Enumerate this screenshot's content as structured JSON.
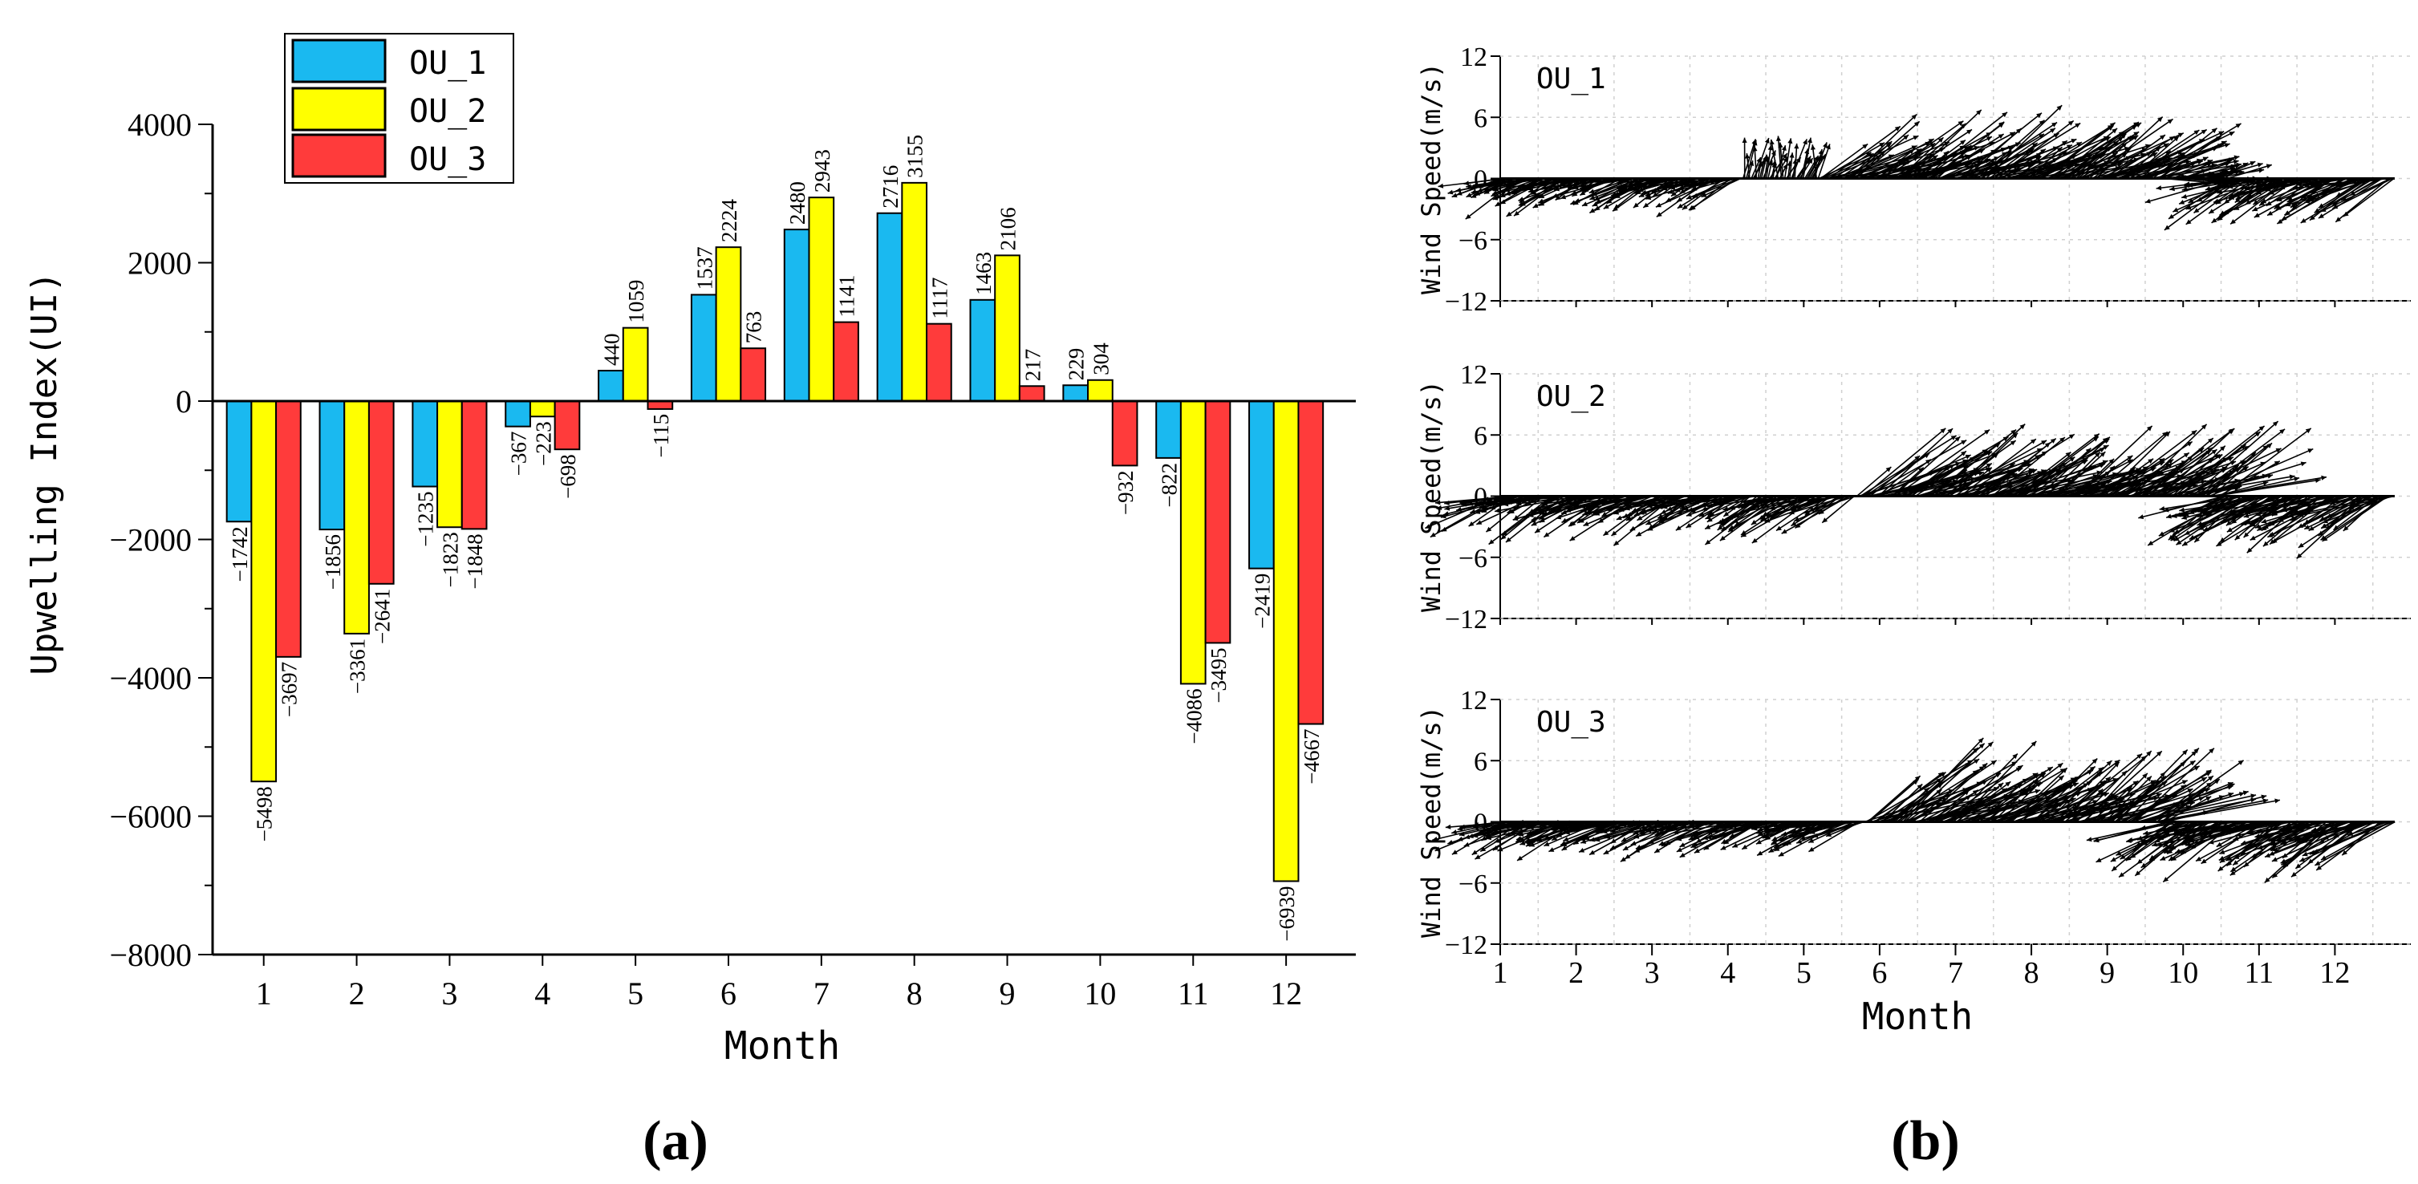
{
  "chart_data": [
    {
      "type": "bar",
      "panel_label": "(a)",
      "categories": [
        "1",
        "2",
        "3",
        "4",
        "5",
        "6",
        "7",
        "8",
        "9",
        "10",
        "11",
        "12"
      ],
      "series": [
        {
          "name": "OU_1",
          "color": "#1ab9f0",
          "values": [
            -1742,
            -1856,
            -1235,
            -367,
            440,
            1537,
            2480,
            2716,
            1463,
            229,
            -822,
            -2419
          ]
        },
        {
          "name": "OU_2",
          "color": "#ffff00",
          "values": [
            -5498,
            -3361,
            -1823,
            -223,
            1059,
            2224,
            2943,
            3155,
            2106,
            304,
            -4086,
            -6939
          ]
        },
        {
          "name": "OU_3",
          "color": "#ff3b3b",
          "values": [
            -3697,
            -2641,
            -1848,
            -698,
            -115,
            763,
            1141,
            1117,
            217,
            -932,
            -3495,
            -4667
          ]
        }
      ],
      "data_labels": {
        "OU_1": [
          "−1742",
          "−1856",
          "−1235",
          "−367",
          "440",
          "1537",
          "2480",
          "2716",
          "1463",
          "229",
          "−822",
          "−2419"
        ],
        "OU_2": [
          "−5498",
          "−3361",
          "−1823",
          "−223",
          "1059",
          "2224",
          "2943",
          "3155",
          "2106",
          "304",
          "−4086",
          "−6939"
        ],
        "OU_3": [
          "−3697",
          "−2641",
          "−1848",
          "−698",
          "−115",
          "763",
          "1141",
          "1117",
          "217",
          "−932",
          "−3495",
          "−4667"
        ]
      },
      "xlabel": "Month",
      "ylabel": "Upwelling Index(UI)",
      "ylim": [
        -8000,
        4000
      ],
      "yticks": [
        4000,
        2000,
        0,
        -2000,
        -4000,
        -6000,
        -8000
      ],
      "ytick_labels": [
        "4000",
        "2000",
        "0",
        "−2000",
        "−4000",
        "−6000",
        "−8000"
      ],
      "legend_position": "top-left"
    },
    {
      "type": "quiver",
      "panel_label": "(b)",
      "xlabel": "Month",
      "xlim": [
        1,
        13
      ],
      "xticks": [
        1,
        2,
        3,
        4,
        5,
        6,
        7,
        8,
        9,
        10,
        11,
        12
      ],
      "xtick_labels": [
        "1",
        "2",
        "3",
        "4",
        "5",
        "6",
        "7",
        "8",
        "9",
        "10",
        "11",
        "12"
      ],
      "ylabel": "Wind Speed(m/s)",
      "ylim": [
        -12,
        12
      ],
      "yticks": [
        12,
        6,
        0,
        -6,
        -12
      ],
      "ytick_labels": [
        "12",
        "6",
        "0",
        "−6",
        "−12"
      ],
      "panels": [
        {
          "name": "OU_1",
          "pattern": [
            {
              "from": 1.0,
              "to": 4.2,
              "angle": 205,
              "speed": 5.0
            },
            {
              "from": 4.2,
              "to": 5.2,
              "angle": 80,
              "speed": 3.5
            },
            {
              "from": 5.2,
              "to": 9.7,
              "angle": 30,
              "speed": 8.0
            },
            {
              "from": 9.7,
              "to": 10.6,
              "angle": 10,
              "speed": 4.0
            },
            {
              "from": 10.6,
              "to": 12.8,
              "angle": 205,
              "speed": 6.5
            }
          ]
        },
        {
          "name": "OU_2",
          "pattern": [
            {
              "from": 1.0,
              "to": 5.7,
              "angle": 205,
              "speed": 6.0
            },
            {
              "from": 5.7,
              "to": 10.5,
              "angle": 30,
              "speed": 8.5
            },
            {
              "from": 10.5,
              "to": 12.8,
              "angle": 210,
              "speed": 7.0
            }
          ]
        },
        {
          "name": "OU_3",
          "pattern": [
            {
              "from": 1.0,
              "to": 5.8,
              "angle": 200,
              "speed": 5.5
            },
            {
              "from": 5.8,
              "to": 9.8,
              "angle": 32,
              "speed": 9.0
            },
            {
              "from": 9.8,
              "to": 12.8,
              "angle": 208,
              "speed": 7.0
            }
          ]
        }
      ]
    }
  ]
}
